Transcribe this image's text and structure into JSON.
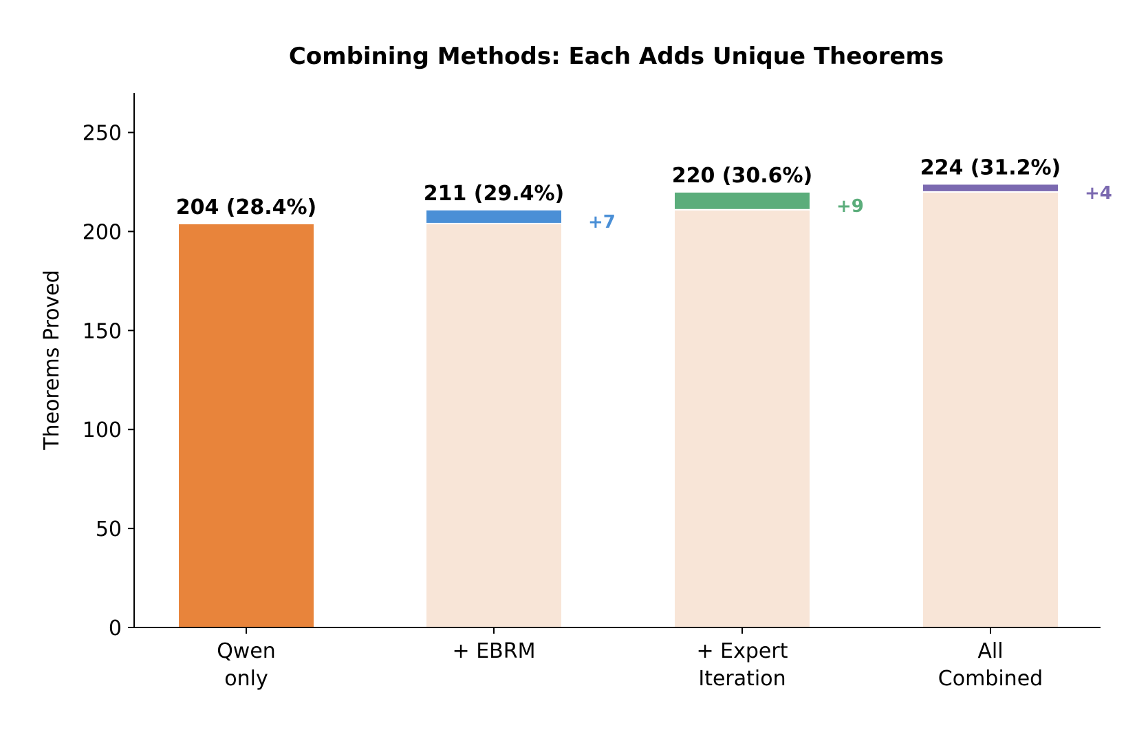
{
  "chart_data": {
    "type": "bar",
    "title": "Combining Methods: Each Adds Unique Theorems",
    "xlabel": "",
    "ylabel": "Theorems Proved",
    "ylim": [
      0,
      270
    ],
    "yticks": [
      "0",
      "50",
      "100",
      "150",
      "200",
      "250"
    ],
    "ytick_values": [
      0,
      50,
      100,
      150,
      200,
      250
    ],
    "grid": false,
    "categories": [
      [
        "Qwen",
        "only"
      ],
      [
        "+ EBRM"
      ],
      [
        "+ Expert",
        "Iteration"
      ],
      [
        "All",
        "Combined"
      ]
    ],
    "values": [
      204,
      211,
      220,
      224
    ],
    "bases": [
      0,
      204,
      211,
      220
    ],
    "increments": [
      204,
      7,
      9,
      4
    ],
    "total_labels": [
      "204  (28.4%)",
      "211  (29.4%)",
      "220  (30.6%)",
      "224  (31.2%)"
    ],
    "delta_labels": [
      "",
      "+7",
      "+9",
      "+4"
    ],
    "colors": {
      "base_bar": "#E8843B",
      "base_fill": "#F8E5D7",
      "increments": [
        "#E8843B",
        "#4A8FD6",
        "#5BAD7B",
        "#7B69B0"
      ]
    }
  }
}
